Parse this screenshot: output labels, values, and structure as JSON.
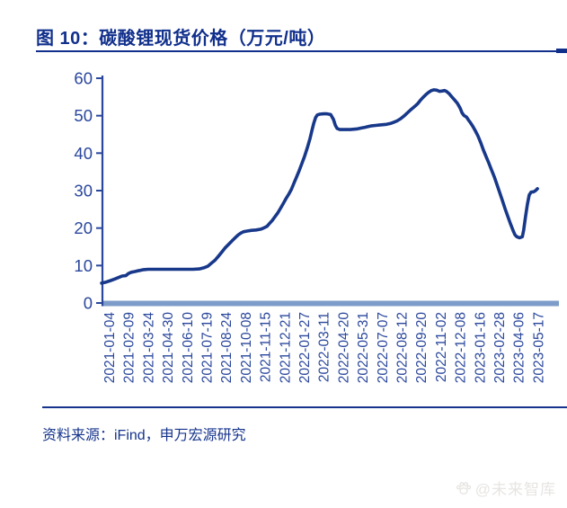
{
  "header": {
    "title": "图 10：碳酸锂现货价格（万元/吨）",
    "accent_color": "#11308c"
  },
  "footer": {
    "source": "资料来源：iFind，申万宏源研究"
  },
  "watermark": {
    "icon": "paw-icon",
    "text": "@未来智库"
  },
  "chart_data": {
    "type": "line",
    "title": "碳酸锂现货价格（万元/吨）",
    "xlabel": "",
    "ylabel": "",
    "unit": "万元/吨",
    "ylim": [
      0,
      60
    ],
    "y_ticks": [
      0,
      10,
      20,
      30,
      40,
      50,
      60
    ],
    "grid": false,
    "legend": "none",
    "colors": {
      "line": "#18388a",
      "axis_text": "#2a479c",
      "axis_line": "#2a479c",
      "baseline_bar": "#7e9cc9"
    },
    "x_tick_labels": [
      "2021-01-04",
      "2021-02-09",
      "2021-03-24",
      "2021-04-30",
      "2021-06-10",
      "2021-07-19",
      "2021-08-24",
      "2021-10-08",
      "2021-11-15",
      "2021-12-21",
      "2022-01-27",
      "2022-03-11",
      "2022-04-20",
      "2022-05-31",
      "2022-07-07",
      "2022-08-12",
      "2022-09-20",
      "2022-11-02",
      "2022-12-08",
      "2023-01-16",
      "2023-02-28",
      "2023-04-06",
      "2023-05-17"
    ],
    "series": [
      {
        "name": "碳酸锂现货价格",
        "points": [
          [
            0.0,
            5.3
          ],
          [
            0.01,
            5.6
          ],
          [
            0.02,
            6.0
          ],
          [
            0.029,
            6.4
          ],
          [
            0.035,
            6.7
          ],
          [
            0.041,
            7.0
          ],
          [
            0.045,
            7.2
          ],
          [
            0.053,
            7.3
          ],
          [
            0.059,
            7.9
          ],
          [
            0.065,
            8.2
          ],
          [
            0.073,
            8.4
          ],
          [
            0.079,
            8.6
          ],
          [
            0.084,
            8.7
          ],
          [
            0.092,
            8.9
          ],
          [
            0.102,
            9.0
          ],
          [
            0.122,
            9.0
          ],
          [
            0.141,
            9.0
          ],
          [
            0.161,
            9.0
          ],
          [
            0.181,
            9.0
          ],
          [
            0.2,
            9.0
          ],
          [
            0.214,
            9.1
          ],
          [
            0.224,
            9.4
          ],
          [
            0.232,
            9.8
          ],
          [
            0.24,
            10.6
          ],
          [
            0.248,
            11.4
          ],
          [
            0.255,
            12.4
          ],
          [
            0.263,
            13.6
          ],
          [
            0.271,
            14.8
          ],
          [
            0.279,
            15.8
          ],
          [
            0.287,
            16.8
          ],
          [
            0.293,
            17.5
          ],
          [
            0.299,
            18.2
          ],
          [
            0.305,
            18.7
          ],
          [
            0.31,
            19.0
          ],
          [
            0.318,
            19.2
          ],
          [
            0.328,
            19.4
          ],
          [
            0.338,
            19.5
          ],
          [
            0.348,
            19.7
          ],
          [
            0.354,
            20.0
          ],
          [
            0.362,
            20.5
          ],
          [
            0.367,
            21.2
          ],
          [
            0.373,
            22.0
          ],
          [
            0.379,
            23.0
          ],
          [
            0.385,
            24.0
          ],
          [
            0.391,
            25.2
          ],
          [
            0.397,
            26.5
          ],
          [
            0.403,
            27.8
          ],
          [
            0.409,
            29.0
          ],
          [
            0.415,
            30.3
          ],
          [
            0.42,
            31.8
          ],
          [
            0.426,
            33.5
          ],
          [
            0.432,
            35.3
          ],
          [
            0.438,
            37.2
          ],
          [
            0.444,
            39.2
          ],
          [
            0.45,
            41.5
          ],
          [
            0.456,
            44.0
          ],
          [
            0.46,
            46.0
          ],
          [
            0.464,
            48.0
          ],
          [
            0.468,
            49.5
          ],
          [
            0.472,
            50.2
          ],
          [
            0.477,
            50.4
          ],
          [
            0.485,
            50.5
          ],
          [
            0.493,
            50.5
          ],
          [
            0.501,
            50.3
          ],
          [
            0.507,
            49.0
          ],
          [
            0.511,
            47.5
          ],
          [
            0.515,
            46.6
          ],
          [
            0.521,
            46.3
          ],
          [
            0.528,
            46.3
          ],
          [
            0.536,
            46.3
          ],
          [
            0.544,
            46.3
          ],
          [
            0.552,
            46.4
          ],
          [
            0.56,
            46.5
          ],
          [
            0.568,
            46.7
          ],
          [
            0.576,
            46.9
          ],
          [
            0.583,
            47.1
          ],
          [
            0.591,
            47.3
          ],
          [
            0.599,
            47.4
          ],
          [
            0.607,
            47.5
          ],
          [
            0.615,
            47.6
          ],
          [
            0.623,
            47.7
          ],
          [
            0.631,
            47.9
          ],
          [
            0.638,
            48.2
          ],
          [
            0.646,
            48.6
          ],
          [
            0.654,
            49.2
          ],
          [
            0.662,
            50.0
          ],
          [
            0.67,
            50.9
          ],
          [
            0.678,
            51.8
          ],
          [
            0.686,
            52.6
          ],
          [
            0.692,
            53.3
          ],
          [
            0.697,
            54.1
          ],
          [
            0.703,
            54.9
          ],
          [
            0.709,
            55.6
          ],
          [
            0.715,
            56.2
          ],
          [
            0.721,
            56.7
          ],
          [
            0.727,
            56.9
          ],
          [
            0.733,
            56.8
          ],
          [
            0.739,
            56.5
          ],
          [
            0.745,
            56.6
          ],
          [
            0.75,
            56.7
          ],
          [
            0.754,
            56.5
          ],
          [
            0.76,
            55.9
          ],
          [
            0.766,
            55.0
          ],
          [
            0.772,
            54.2
          ],
          [
            0.778,
            53.3
          ],
          [
            0.784,
            52.0
          ],
          [
            0.788,
            50.8
          ],
          [
            0.792,
            50.1
          ],
          [
            0.798,
            49.6
          ],
          [
            0.802,
            48.9
          ],
          [
            0.805,
            48.4
          ],
          [
            0.811,
            47.3
          ],
          [
            0.817,
            46.0
          ],
          [
            0.823,
            44.6
          ],
          [
            0.829,
            42.8
          ],
          [
            0.835,
            40.8
          ],
          [
            0.841,
            39.0
          ],
          [
            0.847,
            37.3
          ],
          [
            0.853,
            35.4
          ],
          [
            0.859,
            33.6
          ],
          [
            0.864,
            31.8
          ],
          [
            0.87,
            29.7
          ],
          [
            0.876,
            27.5
          ],
          [
            0.882,
            25.3
          ],
          [
            0.888,
            23.2
          ],
          [
            0.894,
            21.2
          ],
          [
            0.9,
            19.3
          ],
          [
            0.904,
            18.2
          ],
          [
            0.908,
            17.7
          ],
          [
            0.914,
            17.4
          ],
          [
            0.92,
            17.7
          ],
          [
            0.923,
            19.5
          ],
          [
            0.927,
            23.0
          ],
          [
            0.931,
            26.3
          ],
          [
            0.935,
            28.8
          ],
          [
            0.939,
            29.6
          ],
          [
            0.945,
            29.7
          ],
          [
            0.949,
            30.0
          ],
          [
            0.953,
            30.5
          ]
        ]
      }
    ]
  }
}
